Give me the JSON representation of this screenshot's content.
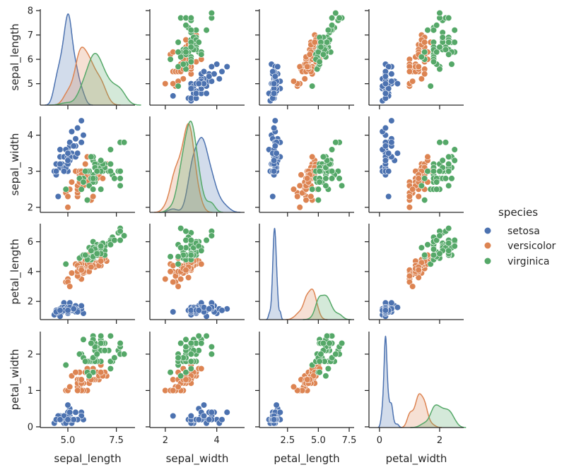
{
  "chart_data": {
    "type": "scatter",
    "kind": "pairplot",
    "diagonal": "kde",
    "grid": false,
    "legend": {
      "title": "species",
      "placement": "right",
      "entries": [
        "setosa",
        "versicolor",
        "virginica"
      ]
    },
    "colors": {
      "setosa": "#4c72b0",
      "versicolor": "#dd8452",
      "virginica": "#55a868"
    },
    "variables": [
      {
        "name": "sepal_length",
        "label": "sepal_length",
        "lim": [
          3.58,
          8.46
        ],
        "ylim": [
          4.12,
          8.06
        ],
        "yticks": [
          5,
          6,
          7,
          8
        ],
        "ytick_labels": [
          "5",
          "6",
          "7",
          "8"
        ],
        "xticks": [
          5.0,
          7.5
        ],
        "xtick_labels": [
          "5.0",
          "7.5"
        ]
      },
      {
        "name": "sepal_width",
        "label": "sepal_width",
        "lim": [
          1.4,
          5.08
        ],
        "ylim": [
          1.86,
          4.52
        ],
        "yticks": [
          2,
          3,
          4
        ],
        "ytick_labels": [
          "2",
          "3",
          "4"
        ],
        "xticks": [
          2,
          4
        ],
        "xtick_labels": [
          "2",
          "4"
        ]
      },
      {
        "name": "petal_length",
        "label": "petal_length",
        "lim": [
          0.22,
          7.9
        ],
        "ylim": [
          0.78,
          7.21
        ],
        "yticks": [
          2,
          4,
          6
        ],
        "ytick_labels": [
          "2",
          "4",
          "6"
        ],
        "xticks": [
          2.5,
          5.0,
          7.5
        ],
        "xtick_labels": [
          "2.5",
          "5.0",
          "7.5"
        ]
      },
      {
        "name": "petal_width",
        "label": "petal_width",
        "lim": [
          -0.35,
          2.8
        ],
        "ylim": [
          -0.02,
          2.62
        ],
        "yticks": [
          0,
          1,
          2
        ],
        "ytick_labels": [
          "0",
          "1",
          "2"
        ],
        "xticks": [
          0,
          2
        ],
        "xtick_labels": [
          "0",
          "2"
        ]
      }
    ],
    "columns": [
      "sepal_length",
      "sepal_width",
      "petal_length",
      "petal_width"
    ],
    "species": [
      {
        "name": "setosa",
        "rows": [
          [
            5.1,
            3.5,
            1.4,
            0.2
          ],
          [
            4.9,
            3.0,
            1.4,
            0.2
          ],
          [
            4.7,
            3.2,
            1.3,
            0.2
          ],
          [
            4.6,
            3.1,
            1.5,
            0.2
          ],
          [
            5.0,
            3.6,
            1.4,
            0.2
          ],
          [
            5.4,
            3.9,
            1.7,
            0.4
          ],
          [
            4.6,
            3.4,
            1.4,
            0.3
          ],
          [
            5.0,
            3.4,
            1.5,
            0.2
          ],
          [
            4.4,
            2.9,
            1.4,
            0.2
          ],
          [
            4.9,
            3.1,
            1.5,
            0.1
          ],
          [
            5.4,
            3.7,
            1.5,
            0.2
          ],
          [
            4.8,
            3.4,
            1.6,
            0.2
          ],
          [
            4.8,
            3.0,
            1.4,
            0.1
          ],
          [
            4.3,
            3.0,
            1.1,
            0.1
          ],
          [
            5.8,
            4.0,
            1.2,
            0.2
          ],
          [
            5.7,
            4.4,
            1.5,
            0.4
          ],
          [
            5.4,
            3.9,
            1.3,
            0.4
          ],
          [
            5.1,
            3.5,
            1.4,
            0.3
          ],
          [
            5.7,
            3.8,
            1.7,
            0.3
          ],
          [
            5.1,
            3.8,
            1.5,
            0.3
          ],
          [
            5.4,
            3.4,
            1.7,
            0.2
          ],
          [
            5.1,
            3.7,
            1.5,
            0.4
          ],
          [
            4.6,
            3.6,
            1.0,
            0.2
          ],
          [
            5.1,
            3.3,
            1.7,
            0.5
          ],
          [
            4.8,
            3.4,
            1.9,
            0.2
          ],
          [
            5.0,
            3.0,
            1.6,
            0.2
          ],
          [
            5.0,
            3.4,
            1.6,
            0.4
          ],
          [
            5.2,
            3.5,
            1.5,
            0.2
          ],
          [
            5.2,
            3.4,
            1.4,
            0.2
          ],
          [
            4.7,
            3.2,
            1.6,
            0.2
          ],
          [
            4.8,
            3.1,
            1.6,
            0.2
          ],
          [
            5.4,
            3.4,
            1.5,
            0.4
          ],
          [
            5.2,
            4.1,
            1.5,
            0.1
          ],
          [
            5.5,
            4.2,
            1.4,
            0.2
          ],
          [
            4.9,
            3.1,
            1.5,
            0.2
          ],
          [
            5.0,
            3.2,
            1.2,
            0.2
          ],
          [
            5.5,
            3.5,
            1.3,
            0.2
          ],
          [
            4.9,
            3.6,
            1.4,
            0.1
          ],
          [
            4.4,
            3.0,
            1.3,
            0.2
          ],
          [
            5.1,
            3.4,
            1.5,
            0.2
          ],
          [
            5.0,
            3.5,
            1.3,
            0.3
          ],
          [
            4.5,
            2.3,
            1.3,
            0.3
          ],
          [
            4.4,
            3.2,
            1.3,
            0.2
          ],
          [
            5.0,
            3.5,
            1.6,
            0.6
          ],
          [
            5.1,
            3.8,
            1.9,
            0.4
          ],
          [
            4.8,
            3.0,
            1.4,
            0.3
          ],
          [
            5.1,
            3.8,
            1.6,
            0.2
          ],
          [
            4.6,
            3.2,
            1.4,
            0.2
          ],
          [
            5.3,
            3.7,
            1.5,
            0.2
          ],
          [
            5.0,
            3.3,
            1.4,
            0.2
          ]
        ]
      },
      {
        "name": "versicolor",
        "rows": [
          [
            7.0,
            3.2,
            4.7,
            1.4
          ],
          [
            6.4,
            3.2,
            4.5,
            1.5
          ],
          [
            6.9,
            3.1,
            4.9,
            1.5
          ],
          [
            5.5,
            2.3,
            4.0,
            1.3
          ],
          [
            6.5,
            2.8,
            4.6,
            1.5
          ],
          [
            5.7,
            2.8,
            4.5,
            1.3
          ],
          [
            6.3,
            3.3,
            4.7,
            1.6
          ],
          [
            4.9,
            2.4,
            3.3,
            1.0
          ],
          [
            6.6,
            2.9,
            4.6,
            1.3
          ],
          [
            5.2,
            2.7,
            3.9,
            1.4
          ],
          [
            5.0,
            2.0,
            3.5,
            1.0
          ],
          [
            5.9,
            3.0,
            4.2,
            1.5
          ],
          [
            6.0,
            2.2,
            4.0,
            1.0
          ],
          [
            6.1,
            2.9,
            4.7,
            1.4
          ],
          [
            5.6,
            2.9,
            3.6,
            1.3
          ],
          [
            6.7,
            3.1,
            4.4,
            1.4
          ],
          [
            5.6,
            3.0,
            4.5,
            1.5
          ],
          [
            5.8,
            2.7,
            4.1,
            1.0
          ],
          [
            6.2,
            2.2,
            4.5,
            1.5
          ],
          [
            5.6,
            2.5,
            3.9,
            1.1
          ],
          [
            5.9,
            3.2,
            4.8,
            1.8
          ],
          [
            6.1,
            2.8,
            4.0,
            1.3
          ],
          [
            6.3,
            2.5,
            4.9,
            1.5
          ],
          [
            6.1,
            2.8,
            4.7,
            1.2
          ],
          [
            6.4,
            2.9,
            4.3,
            1.3
          ],
          [
            6.6,
            3.0,
            4.4,
            1.4
          ],
          [
            6.8,
            2.8,
            4.8,
            1.4
          ],
          [
            6.7,
            3.0,
            5.0,
            1.7
          ],
          [
            6.0,
            2.9,
            4.5,
            1.5
          ],
          [
            5.7,
            2.6,
            3.5,
            1.0
          ],
          [
            5.5,
            2.4,
            3.8,
            1.1
          ],
          [
            5.5,
            2.4,
            3.7,
            1.0
          ],
          [
            5.8,
            2.7,
            3.9,
            1.2
          ],
          [
            6.0,
            2.7,
            5.1,
            1.6
          ],
          [
            5.4,
            3.0,
            4.5,
            1.5
          ],
          [
            6.0,
            3.4,
            4.5,
            1.6
          ],
          [
            6.7,
            3.1,
            4.7,
            1.5
          ],
          [
            6.3,
            2.3,
            4.4,
            1.3
          ],
          [
            5.6,
            3.0,
            4.1,
            1.3
          ],
          [
            5.5,
            2.5,
            4.0,
            1.3
          ],
          [
            5.5,
            2.6,
            4.4,
            1.2
          ],
          [
            6.1,
            3.0,
            4.6,
            1.4
          ],
          [
            5.8,
            2.6,
            4.0,
            1.2
          ],
          [
            5.0,
            2.3,
            3.3,
            1.0
          ],
          [
            5.6,
            2.7,
            4.2,
            1.3
          ],
          [
            5.7,
            3.0,
            4.2,
            1.2
          ],
          [
            5.7,
            2.9,
            4.2,
            1.3
          ],
          [
            6.2,
            2.9,
            4.3,
            1.3
          ],
          [
            5.1,
            2.5,
            3.0,
            1.1
          ],
          [
            5.7,
            2.8,
            4.1,
            1.3
          ]
        ]
      },
      {
        "name": "virginica",
        "rows": [
          [
            6.3,
            3.3,
            6.0,
            2.5
          ],
          [
            5.8,
            2.7,
            5.1,
            1.9
          ],
          [
            7.1,
            3.0,
            5.9,
            2.1
          ],
          [
            6.3,
            2.9,
            5.6,
            1.8
          ],
          [
            6.5,
            3.0,
            5.8,
            2.2
          ],
          [
            7.6,
            3.0,
            6.6,
            2.1
          ],
          [
            4.9,
            2.5,
            4.5,
            1.7
          ],
          [
            7.3,
            2.9,
            6.3,
            1.8
          ],
          [
            6.7,
            2.5,
            5.8,
            1.8
          ],
          [
            7.2,
            3.6,
            6.1,
            2.5
          ],
          [
            6.5,
            3.2,
            5.1,
            2.0
          ],
          [
            6.4,
            2.7,
            5.3,
            1.9
          ],
          [
            6.8,
            3.0,
            5.5,
            2.1
          ],
          [
            5.7,
            2.5,
            5.0,
            2.0
          ],
          [
            5.8,
            2.8,
            5.1,
            2.4
          ],
          [
            6.4,
            3.2,
            5.3,
            2.3
          ],
          [
            6.5,
            3.0,
            5.5,
            1.8
          ],
          [
            7.7,
            3.8,
            6.7,
            2.2
          ],
          [
            7.7,
            2.6,
            6.9,
            2.3
          ],
          [
            6.0,
            2.2,
            5.0,
            1.5
          ],
          [
            6.9,
            3.2,
            5.7,
            2.3
          ],
          [
            5.6,
            2.8,
            4.9,
            2.0
          ],
          [
            7.7,
            2.8,
            6.7,
            2.0
          ],
          [
            6.3,
            2.7,
            4.9,
            1.8
          ],
          [
            6.7,
            3.3,
            5.7,
            2.1
          ],
          [
            7.2,
            3.2,
            6.0,
            1.8
          ],
          [
            6.2,
            2.8,
            4.8,
            1.8
          ],
          [
            6.1,
            3.0,
            4.9,
            1.8
          ],
          [
            6.4,
            2.8,
            5.6,
            2.1
          ],
          [
            7.2,
            3.0,
            5.8,
            1.6
          ],
          [
            7.4,
            2.8,
            6.1,
            1.9
          ],
          [
            7.9,
            3.8,
            6.4,
            2.0
          ],
          [
            6.4,
            2.8,
            5.6,
            2.2
          ],
          [
            6.3,
            2.8,
            5.1,
            1.5
          ],
          [
            6.1,
            2.6,
            5.6,
            1.4
          ],
          [
            7.7,
            3.0,
            6.1,
            2.3
          ],
          [
            6.3,
            3.4,
            5.6,
            2.4
          ],
          [
            6.4,
            3.1,
            5.5,
            1.8
          ],
          [
            6.0,
            3.0,
            4.8,
            1.8
          ],
          [
            6.9,
            3.1,
            5.4,
            2.1
          ],
          [
            6.7,
            3.1,
            5.6,
            2.4
          ],
          [
            6.9,
            3.1,
            5.1,
            2.3
          ],
          [
            5.8,
            2.7,
            5.1,
            1.9
          ],
          [
            6.8,
            3.2,
            5.9,
            2.3
          ],
          [
            6.7,
            3.3,
            5.7,
            2.5
          ],
          [
            6.7,
            3.0,
            5.2,
            2.3
          ],
          [
            6.3,
            2.5,
            5.0,
            1.9
          ],
          [
            6.5,
            3.0,
            5.2,
            2.0
          ],
          [
            6.2,
            3.4,
            5.4,
            2.3
          ],
          [
            5.9,
            3.0,
            5.1,
            1.8
          ]
        ]
      }
    ]
  }
}
